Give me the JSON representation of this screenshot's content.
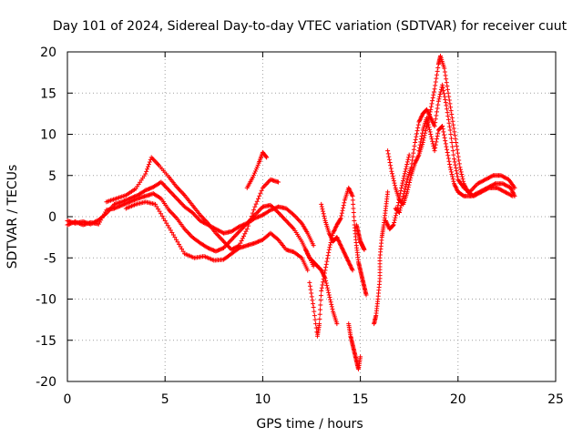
{
  "chart_data": {
    "type": "scatter",
    "title": "Day 101 of 2024, Sidereal Day-to-day VTEC variation (SDTVAR) for receiver cuut",
    "xlabel": "GPS time / hours",
    "ylabel": "SDTVAR / TECUs",
    "xlim": [
      0,
      25
    ],
    "ylim": [
      -20,
      20
    ],
    "xticks": [
      0,
      5,
      10,
      15,
      20,
      25
    ],
    "yticks": [
      -20,
      -15,
      -10,
      -5,
      0,
      5,
      10,
      15,
      20
    ],
    "grid": true,
    "marker": "+",
    "color": "#ff0000",
    "series": [
      {
        "name": "track-1",
        "points": [
          [
            0.0,
            -0.5
          ],
          [
            0.4,
            -0.8
          ],
          [
            0.8,
            -0.6
          ],
          [
            1.2,
            -0.9
          ],
          [
            1.6,
            -0.4
          ],
          [
            2.0,
            0.4
          ],
          [
            2.4,
            1.5
          ],
          [
            2.8,
            1.8
          ],
          [
            3.2,
            2.2
          ],
          [
            3.6,
            2.6
          ],
          [
            4.0,
            3.2
          ],
          [
            4.4,
            3.6
          ],
          [
            4.8,
            4.2
          ],
          [
            5.2,
            3.2
          ],
          [
            5.6,
            2.2
          ],
          [
            6.0,
            1.2
          ],
          [
            6.4,
            0.5
          ],
          [
            6.8,
            -0.5
          ],
          [
            7.2,
            -1.0
          ],
          [
            7.6,
            -1.5
          ],
          [
            8.0,
            -2.0
          ],
          [
            8.4,
            -1.8
          ],
          [
            8.8,
            -1.2
          ],
          [
            9.2,
            -0.8
          ],
          [
            9.6,
            -0.2
          ],
          [
            10.0,
            0.2
          ],
          [
            10.4,
            0.8
          ],
          [
            10.8,
            1.2
          ],
          [
            11.2,
            1.0
          ],
          [
            11.6,
            0.2
          ],
          [
            12.0,
            -0.8
          ],
          [
            12.3,
            -2.0
          ],
          [
            12.6,
            -3.5
          ]
        ]
      },
      {
        "name": "track-2",
        "points": [
          [
            0.0,
            -1.0
          ],
          [
            0.4,
            -0.6
          ],
          [
            0.8,
            -1.0
          ],
          [
            1.2,
            -0.7
          ],
          [
            1.6,
            -0.9
          ],
          [
            2.0,
            0.8
          ],
          [
            2.4,
            1.0
          ],
          [
            2.8,
            1.4
          ],
          [
            3.2,
            1.8
          ],
          [
            3.6,
            2.2
          ],
          [
            4.0,
            2.5
          ],
          [
            4.4,
            2.8
          ],
          [
            4.8,
            2.2
          ],
          [
            5.2,
            0.8
          ],
          [
            5.6,
            -0.2
          ],
          [
            6.0,
            -1.5
          ],
          [
            6.4,
            -2.5
          ],
          [
            6.8,
            -3.2
          ],
          [
            7.2,
            -3.8
          ],
          [
            7.6,
            -4.2
          ],
          [
            8.0,
            -3.8
          ],
          [
            8.4,
            -2.8
          ],
          [
            8.8,
            -1.8
          ],
          [
            9.2,
            -0.8
          ],
          [
            9.6,
            0.2
          ],
          [
            10.0,
            1.2
          ],
          [
            10.4,
            1.4
          ],
          [
            10.8,
            0.5
          ],
          [
            11.2,
            -0.5
          ],
          [
            11.6,
            -1.5
          ],
          [
            12.0,
            -3.0
          ],
          [
            12.3,
            -4.5
          ],
          [
            12.6,
            -6.0
          ]
        ]
      },
      {
        "name": "track-3",
        "points": [
          [
            2.0,
            1.8
          ],
          [
            2.5,
            2.2
          ],
          [
            3.0,
            2.6
          ],
          [
            3.5,
            3.4
          ],
          [
            4.0,
            5.2
          ],
          [
            4.3,
            7.2
          ],
          [
            4.7,
            6.2
          ],
          [
            5.2,
            4.8
          ],
          [
            5.6,
            3.6
          ],
          [
            6.0,
            2.6
          ],
          [
            6.4,
            1.4
          ],
          [
            6.8,
            0.2
          ],
          [
            7.2,
            -0.8
          ],
          [
            7.6,
            -2.0
          ],
          [
            8.0,
            -3.0
          ],
          [
            8.4,
            -4.0
          ],
          [
            8.8,
            -3.5
          ],
          [
            9.2,
            -1.5
          ],
          [
            9.6,
            1.2
          ],
          [
            10.0,
            3.5
          ],
          [
            10.4,
            4.5
          ],
          [
            10.8,
            4.2
          ]
        ]
      },
      {
        "name": "track-4",
        "points": [
          [
            3.0,
            1.0
          ],
          [
            3.5,
            1.5
          ],
          [
            4.0,
            1.8
          ],
          [
            4.5,
            1.5
          ],
          [
            5.0,
            -0.5
          ],
          [
            5.5,
            -2.5
          ],
          [
            6.0,
            -4.5
          ],
          [
            6.5,
            -5.0
          ],
          [
            7.0,
            -4.8
          ],
          [
            7.5,
            -5.3
          ],
          [
            8.0,
            -5.2
          ],
          [
            8.4,
            -4.5
          ],
          [
            8.8,
            -3.8
          ],
          [
            9.2,
            -3.5
          ],
          [
            9.6,
            -3.2
          ],
          [
            10.0,
            -2.8
          ],
          [
            10.4,
            -2.0
          ],
          [
            10.8,
            -2.8
          ],
          [
            11.2,
            -4.0
          ],
          [
            11.6,
            -4.3
          ],
          [
            12.0,
            -5.0
          ],
          [
            12.3,
            -6.5
          ]
        ]
      },
      {
        "name": "track-5",
        "points": [
          [
            9.2,
            3.5
          ],
          [
            9.5,
            4.8
          ],
          [
            9.8,
            6.5
          ],
          [
            10.0,
            7.8
          ],
          [
            10.2,
            7.2
          ]
        ]
      },
      {
        "name": "track-6",
        "points": [
          [
            12.4,
            -8.0
          ],
          [
            12.6,
            -11.0
          ],
          [
            12.8,
            -14.5
          ],
          [
            12.9,
            -13.0
          ],
          [
            13.0,
            -9.0
          ],
          [
            13.2,
            -6.5
          ],
          [
            13.4,
            -4.0
          ],
          [
            13.6,
            -2.0
          ],
          [
            13.8,
            -1.0
          ],
          [
            14.0,
            -0.2
          ],
          [
            14.2,
            2.0
          ],
          [
            14.4,
            3.5
          ],
          [
            14.6,
            2.5
          ],
          [
            14.7,
            -1.0
          ],
          [
            14.8,
            -3.5
          ],
          [
            14.9,
            -5.5
          ],
          [
            15.0,
            -6.5
          ],
          [
            15.1,
            -7.5
          ],
          [
            15.2,
            -8.5
          ],
          [
            15.3,
            -9.5
          ]
        ]
      },
      {
        "name": "track-7",
        "points": [
          [
            12.2,
            -4.0
          ],
          [
            12.4,
            -5.0
          ],
          [
            12.6,
            -5.5
          ],
          [
            12.8,
            -6.0
          ],
          [
            13.0,
            -6.5
          ],
          [
            13.2,
            -7.5
          ],
          [
            13.4,
            -9.5
          ],
          [
            13.6,
            -11.5
          ],
          [
            13.8,
            -13.0
          ]
        ]
      },
      {
        "name": "track-8",
        "points": [
          [
            13.0,
            1.5
          ],
          [
            13.2,
            -0.5
          ],
          [
            13.4,
            -2.0
          ],
          [
            13.6,
            -3.0
          ],
          [
            13.8,
            -2.5
          ],
          [
            14.0,
            -3.5
          ],
          [
            14.2,
            -4.5
          ],
          [
            14.4,
            -5.5
          ],
          [
            14.6,
            -6.5
          ]
        ]
      },
      {
        "name": "track-9",
        "points": [
          [
            14.8,
            -1.0
          ],
          [
            14.9,
            -2.0
          ],
          [
            15.0,
            -3.0
          ],
          [
            15.1,
            -3.5
          ],
          [
            15.2,
            -4.0
          ]
        ]
      },
      {
        "name": "track-10",
        "points": [
          [
            14.4,
            -13.0
          ],
          [
            14.5,
            -14.5
          ],
          [
            14.6,
            -15.5
          ],
          [
            14.7,
            -16.5
          ],
          [
            14.8,
            -17.5
          ],
          [
            14.9,
            -18.5
          ],
          [
            15.0,
            -17.0
          ]
        ]
      },
      {
        "name": "track-11",
        "points": [
          [
            15.7,
            -13.0
          ],
          [
            15.8,
            -12.0
          ],
          [
            15.9,
            -10.0
          ],
          [
            16.0,
            -7.5
          ],
          [
            16.0,
            -5.0
          ],
          [
            16.1,
            -2.5
          ],
          [
            16.2,
            -1.0
          ],
          [
            16.3,
            1.0
          ],
          [
            16.4,
            3.0
          ]
        ]
      },
      {
        "name": "track-12",
        "points": [
          [
            16.4,
            8.0
          ],
          [
            16.6,
            5.5
          ],
          [
            16.8,
            3.5
          ],
          [
            17.0,
            2.0
          ],
          [
            17.2,
            1.5
          ],
          [
            17.4,
            3.0
          ],
          [
            17.6,
            5.0
          ],
          [
            17.8,
            6.5
          ],
          [
            18.0,
            7.5
          ],
          [
            18.2,
            9.0
          ],
          [
            18.4,
            11.0
          ],
          [
            18.6,
            13.0
          ],
          [
            18.8,
            15.5
          ],
          [
            19.0,
            18.5
          ],
          [
            19.1,
            19.5
          ],
          [
            19.3,
            18.0
          ],
          [
            19.5,
            15.0
          ],
          [
            19.7,
            12.0
          ],
          [
            19.9,
            9.0
          ],
          [
            20.1,
            6.0
          ],
          [
            20.3,
            4.0
          ],
          [
            20.5,
            3.0
          ],
          [
            20.8,
            2.5
          ],
          [
            21.2,
            3.0
          ],
          [
            21.6,
            3.5
          ],
          [
            22.0,
            3.5
          ],
          [
            22.4,
            3.0
          ],
          [
            22.8,
            2.5
          ]
        ]
      },
      {
        "name": "track-13",
        "points": [
          [
            16.8,
            1.0
          ],
          [
            17.0,
            0.5
          ],
          [
            17.2,
            2.5
          ],
          [
            17.4,
            4.5
          ],
          [
            17.6,
            6.0
          ],
          [
            17.8,
            9.0
          ],
          [
            18.0,
            11.5
          ],
          [
            18.2,
            12.5
          ],
          [
            18.4,
            13.0
          ],
          [
            18.6,
            12.0
          ],
          [
            18.8,
            11.0
          ],
          [
            19.0,
            14.0
          ],
          [
            19.2,
            16.0
          ],
          [
            19.4,
            13.5
          ],
          [
            19.6,
            10.5
          ],
          [
            19.8,
            7.0
          ],
          [
            20.0,
            4.5
          ],
          [
            20.3,
            3.5
          ],
          [
            20.6,
            3.0
          ],
          [
            21.0,
            4.0
          ],
          [
            21.4,
            4.5
          ],
          [
            21.8,
            5.0
          ],
          [
            22.2,
            5.0
          ],
          [
            22.6,
            4.5
          ],
          [
            22.9,
            3.5
          ]
        ]
      },
      {
        "name": "track-14",
        "points": [
          [
            18.0,
            8.0
          ],
          [
            18.2,
            10.5
          ],
          [
            18.4,
            12.0
          ],
          [
            18.6,
            10.0
          ],
          [
            18.8,
            8.0
          ],
          [
            19.0,
            10.5
          ],
          [
            19.2,
            11.0
          ],
          [
            19.4,
            8.5
          ],
          [
            19.6,
            6.0
          ],
          [
            19.8,
            4.0
          ],
          [
            20.0,
            3.0
          ],
          [
            20.3,
            2.5
          ],
          [
            20.7,
            2.5
          ],
          [
            21.1,
            3.0
          ],
          [
            21.5,
            3.5
          ],
          [
            21.9,
            4.0
          ],
          [
            22.3,
            4.0
          ],
          [
            22.7,
            3.5
          ],
          [
            22.9,
            2.5
          ]
        ]
      },
      {
        "name": "track-15",
        "points": [
          [
            16.3,
            -0.5
          ],
          [
            16.5,
            -1.5
          ],
          [
            16.7,
            -1.0
          ],
          [
            16.9,
            1.0
          ],
          [
            17.1,
            3.5
          ],
          [
            17.3,
            5.5
          ],
          [
            17.5,
            7.5
          ]
        ]
      }
    ]
  }
}
